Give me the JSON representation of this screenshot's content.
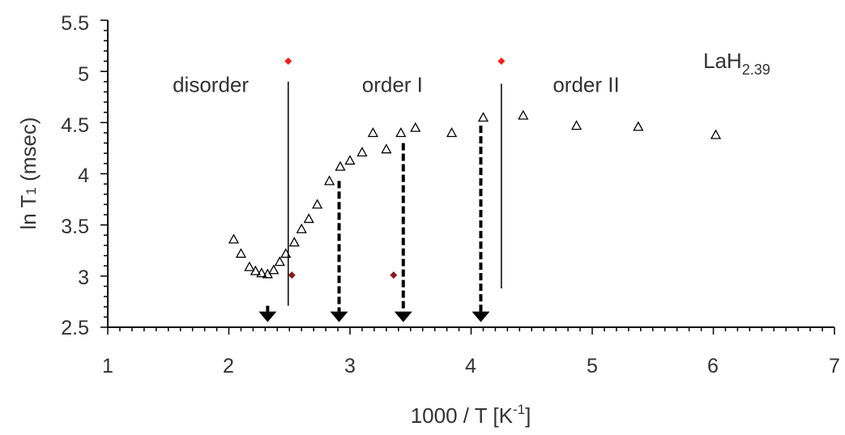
{
  "chart_data": {
    "type": "scatter",
    "title": "",
    "sample_label": {
      "base": "LaH",
      "subscript": "2.39"
    },
    "xlabel": {
      "text": "1000 / T  [K",
      "superscript": "-1",
      "suffix": "]"
    },
    "ylabel": {
      "text": "ln T",
      "subscript": "1",
      "suffix": " (msec)"
    },
    "xlim": [
      1,
      7
    ],
    "ylim": [
      2.5,
      5.5
    ],
    "xticks": [
      "1",
      "2",
      "3",
      "4",
      "5",
      "6",
      "7"
    ],
    "yticks": [
      "2.5",
      "3",
      "3.5",
      "4",
      "4.5",
      "5",
      "5.5"
    ],
    "grid": false,
    "colors": {
      "triangles": "#000000",
      "red_markers": "#ff1a1a",
      "dark_markers": "#8b1a1a",
      "arrows": "#000000",
      "phase_lines": "#000000"
    },
    "series": [
      {
        "marker": "open-triangle",
        "x": [
          2.04,
          2.1,
          2.17,
          2.22,
          2.27,
          2.32,
          2.37,
          2.42,
          2.47,
          2.54,
          2.6,
          2.66,
          2.73,
          2.83,
          2.92,
          3.0,
          3.1,
          3.19,
          3.3,
          3.42,
          3.54,
          3.84,
          4.1,
          4.43,
          4.87,
          5.38,
          6.02
        ],
        "y": [
          3.36,
          3.22,
          3.09,
          3.05,
          3.03,
          3.02,
          3.06,
          3.14,
          3.22,
          3.33,
          3.46,
          3.56,
          3.7,
          3.93,
          4.07,
          4.13,
          4.21,
          4.4,
          4.24,
          4.4,
          4.45,
          4.4,
          4.55,
          4.57,
          4.47,
          4.46,
          4.38
        ]
      },
      {
        "marker": "filled-diamond",
        "color": "red",
        "x": [
          2.49,
          4.25
        ],
        "y": [
          5.1,
          5.1
        ]
      },
      {
        "marker": "filled-diamond",
        "color": "dark-red",
        "x": [
          2.52,
          3.36
        ],
        "y": [
          3.01,
          3.01
        ]
      }
    ],
    "phase_boundaries": [
      {
        "x": 2.49,
        "y_top": 4.9,
        "y_bottom": 2.71
      },
      {
        "x": 4.25,
        "y_top": 4.88,
        "y_bottom": 2.88
      }
    ],
    "arrows": [
      {
        "x": 2.32,
        "y_from": 2.71,
        "y_to": 2.55,
        "style": "dashed"
      },
      {
        "x": 2.91,
        "y_from": 3.93,
        "y_to": 2.55,
        "style": "dashed"
      },
      {
        "x": 3.44,
        "y_from": 4.3,
        "y_to": 2.55,
        "style": "dashed"
      },
      {
        "x": 4.08,
        "y_from": 4.47,
        "y_to": 2.55,
        "style": "dashed"
      }
    ],
    "annotations": [
      {
        "text": "disorder",
        "x": 1.85,
        "y": 4.8
      },
      {
        "text": "order I",
        "x": 3.35,
        "y": 4.8
      },
      {
        "text": "order II",
        "x": 4.95,
        "y": 4.8
      }
    ]
  }
}
